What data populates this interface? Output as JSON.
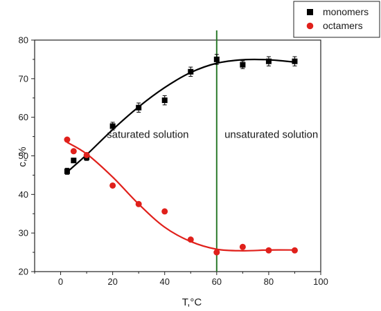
{
  "chart_data": {
    "type": "scatter",
    "xlabel": "T,°C",
    "ylabel": "c, %",
    "xlim": [
      -10,
      100
    ],
    "ylim": [
      20,
      80
    ],
    "xticks": [
      0,
      20,
      40,
      60,
      80,
      100
    ],
    "yticks": [
      20,
      30,
      40,
      50,
      60,
      70,
      80
    ],
    "grid": false,
    "legend_position": "top-right",
    "series": [
      {
        "name": "monomers",
        "color": "#000000",
        "marker": "square",
        "x": [
          2.5,
          5,
          10,
          20,
          30,
          40,
          50,
          60,
          70,
          80,
          90
        ],
        "y": [
          46,
          48.8,
          49.6,
          57.7,
          62.5,
          64.4,
          71.8,
          75,
          73.6,
          74.5,
          74.5
        ],
        "error": [
          0.8,
          0.6,
          0.8,
          1.0,
          1.2,
          1.2,
          1.2,
          1.3,
          1.0,
          1.2,
          1.2
        ],
        "fit": [
          [
            2.5,
            45.8
          ],
          [
            10,
            50.3
          ],
          [
            20,
            56.8
          ],
          [
            30,
            62.7
          ],
          [
            40,
            67.7
          ],
          [
            50,
            71.6
          ],
          [
            60,
            74.0
          ],
          [
            70,
            74.9
          ],
          [
            80,
            74.9
          ],
          [
            90,
            74.3
          ]
        ]
      },
      {
        "name": "octamers",
        "color": "#e0201b",
        "marker": "circle",
        "x": [
          2.5,
          5,
          10,
          20,
          30,
          40,
          50,
          60,
          70,
          80,
          90
        ],
        "y": [
          54.2,
          51.2,
          50.2,
          42.3,
          37.5,
          35.6,
          28.3,
          25,
          26.4,
          25.5,
          25.5
        ],
        "fit": [
          [
            2.5,
            53.5
          ],
          [
            10,
            50.5
          ],
          [
            20,
            44.5
          ],
          [
            30,
            37.5
          ],
          [
            40,
            31.5
          ],
          [
            50,
            27.8
          ],
          [
            60,
            25.8
          ],
          [
            70,
            25.4
          ],
          [
            80,
            25.6
          ],
          [
            90,
            25.6
          ]
        ]
      }
    ],
    "vline": {
      "x": 60,
      "color": "#2a7a2a"
    },
    "annotations": [
      {
        "text": "saturated solution",
        "x": 33.5,
        "y": 54.7
      },
      {
        "text": "unsaturated solution",
        "x": 81,
        "y": 54.7
      }
    ]
  }
}
